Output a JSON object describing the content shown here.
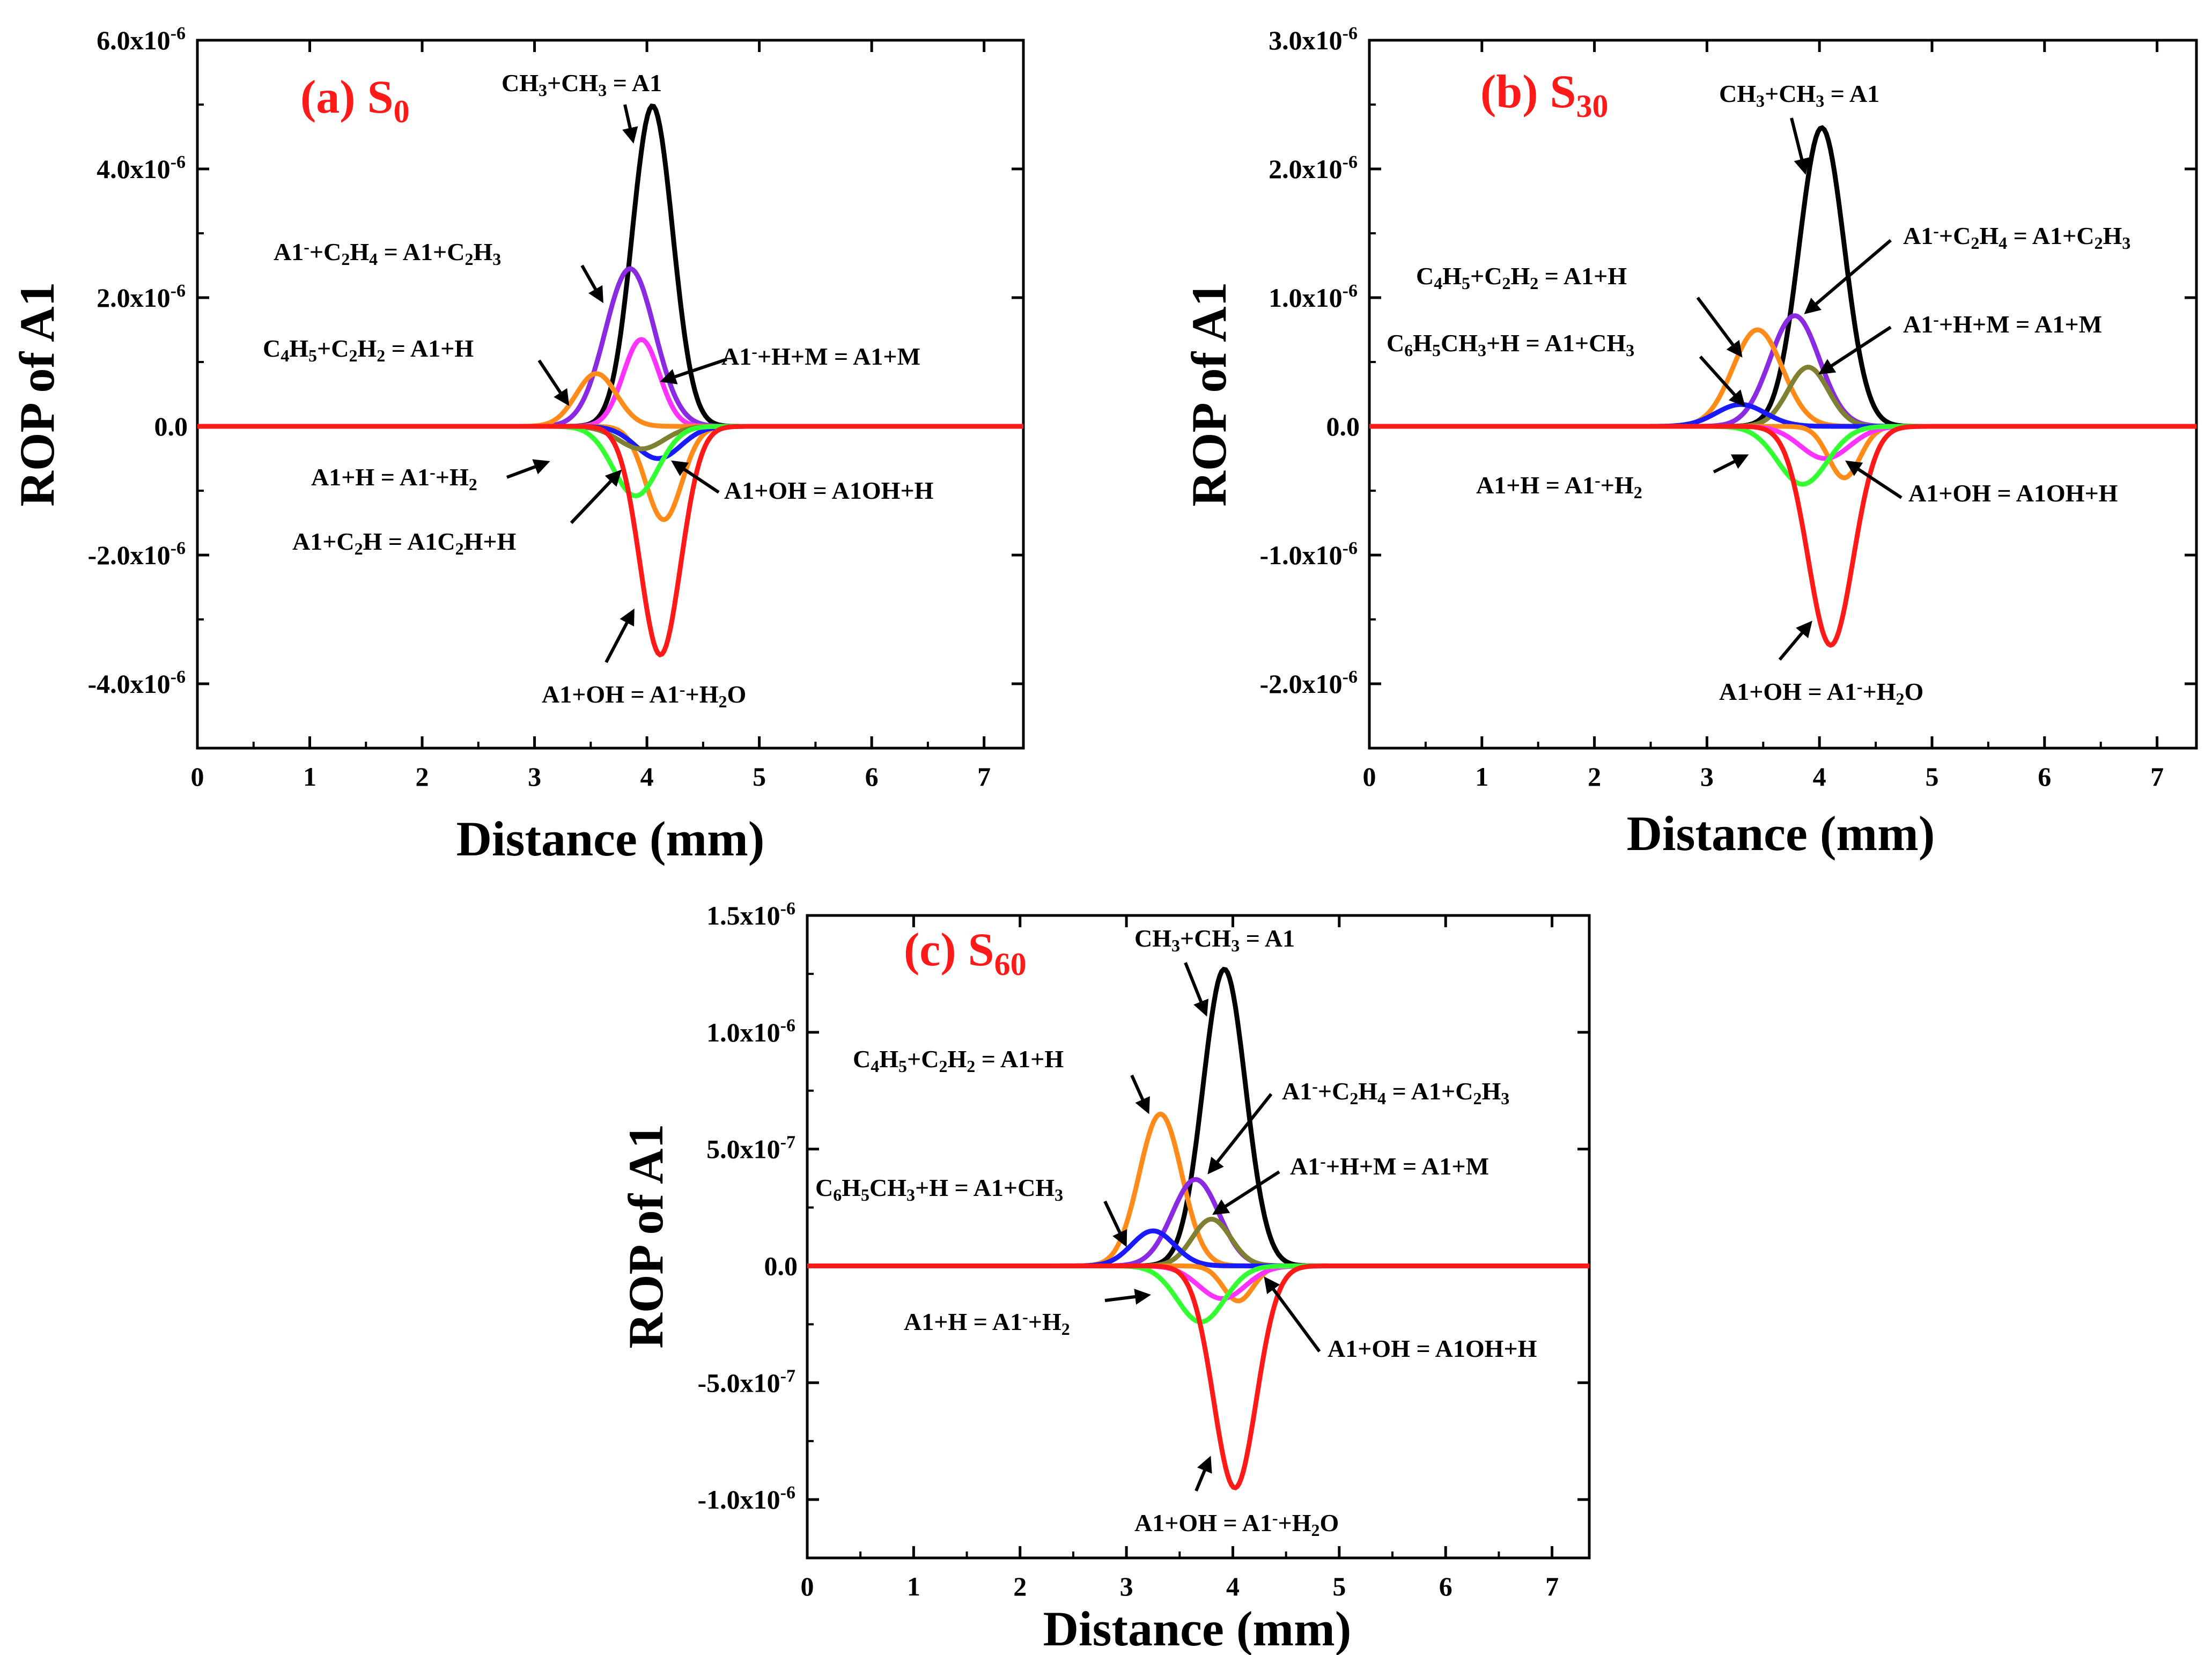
{
  "colors": {
    "black": "#000000",
    "violet": "#8a2be2",
    "magenta": "#ff33ff",
    "orange": "#ff8c1a",
    "blue": "#1a1aff",
    "olive": "#808033",
    "green": "#33ff33",
    "red": "#ff1a1a"
  },
  "chart_data": [
    {
      "type": "line",
      "panel": "a",
      "title_letter": "(a) S",
      "title_sub": "0",
      "xlabel": "Distance (mm)",
      "ylabel": "ROP of A1",
      "xlim": [
        0,
        7.35
      ],
      "ylim": [
        -5e-06,
        6e-06
      ],
      "xticks": [
        "0",
        "1",
        "2",
        "3",
        "4",
        "5",
        "6",
        "7"
      ],
      "yticks": [
        {
          "v": 6e-06,
          "base": "6.0x10",
          "exp": "-6"
        },
        {
          "v": 4e-06,
          "base": "4.0x10",
          "exp": "-6"
        },
        {
          "v": 2e-06,
          "base": "2.0x10",
          "exp": "-6"
        },
        {
          "v": 0,
          "base": "0.0",
          "exp": ""
        },
        {
          "v": -2e-06,
          "base": "-2.0x10",
          "exp": "-6"
        },
        {
          "v": -4e-06,
          "base": "-4.0x10",
          "exp": "-6"
        }
      ],
      "series": [
        {
          "name": "CH3+CH3 = A1",
          "color": "#000000",
          "peak": 4.98e-06,
          "center": 4.05,
          "width": 0.18
        },
        {
          "name": "A1-+C2H4 = A1+C2H3",
          "color": "#8a2be2",
          "peak": 2.45e-06,
          "center": 3.85,
          "width": 0.22
        },
        {
          "name": "A1-+H+M = A1+M",
          "color": "#ff33ff",
          "peak": 1.35e-06,
          "center": 3.95,
          "width": 0.16
        },
        {
          "name": "C4H5+C2H2 = A1+H",
          "color": "#ff8c1a",
          "peak": 8.2e-07,
          "center": 3.55,
          "width": 0.18
        },
        {
          "name": "A1+OH = A1OH+H",
          "color": "#ff8c1a",
          "peak": -1.45e-06,
          "center": 4.15,
          "width": 0.16
        },
        {
          "name": "A1+H = A1-+H2",
          "color": "#1a1aff",
          "peak": -5e-07,
          "center": 4.1,
          "width": 0.2
        },
        {
          "name": "A1+C2H = A1C2H+H",
          "color": "#808033",
          "peak": -3.5e-07,
          "center": 3.95,
          "width": 0.2
        },
        {
          "name": "A1+OH = A1OH+H (green)",
          "color": "#33ff33",
          "peak": -1.08e-06,
          "center": 3.9,
          "width": 0.2
        },
        {
          "name": "A1+OH = A1-+H2O",
          "color": "#ff1a1a",
          "peak": -3.55e-06,
          "center": 4.12,
          "width": 0.18
        }
      ],
      "annotations": [
        {
          "parts": [
            [
              "CH",
              "n"
            ],
            [
              "3",
              "sub"
            ],
            [
              "+CH",
              "n"
            ],
            [
              "3",
              "sub"
            ],
            [
              " = A1",
              "n"
            ]
          ]
        },
        {
          "parts": [
            [
              "A1",
              "n"
            ],
            [
              "-",
              "sup"
            ],
            [
              "+C",
              "n"
            ],
            [
              "2",
              "sub"
            ],
            [
              "H",
              "n"
            ],
            [
              "4",
              "sub"
            ],
            [
              " = A1+C",
              "n"
            ],
            [
              "2",
              "sub"
            ],
            [
              "H",
              "n"
            ],
            [
              "3",
              "sub"
            ]
          ]
        },
        {
          "parts": [
            [
              "C",
              "n"
            ],
            [
              "4",
              "sub"
            ],
            [
              "H",
              "n"
            ],
            [
              "5",
              "sub"
            ],
            [
              "+C",
              "n"
            ],
            [
              "2",
              "sub"
            ],
            [
              "H",
              "n"
            ],
            [
              "2",
              "sub"
            ],
            [
              " = A1+H",
              "n"
            ]
          ]
        },
        {
          "parts": [
            [
              "A1",
              "n"
            ],
            [
              "-",
              "sup"
            ],
            [
              "+H+M = A1+M",
              "n"
            ]
          ]
        },
        {
          "parts": [
            [
              "A1+H = A1",
              "n"
            ],
            [
              "-",
              "sup"
            ],
            [
              "+H",
              "n"
            ],
            [
              "2",
              "sub"
            ]
          ]
        },
        {
          "parts": [
            [
              "A1+OH = A1OH+H",
              "n"
            ]
          ]
        },
        {
          "parts": [
            [
              "A1+C",
              "n"
            ],
            [
              "2",
              "sub"
            ],
            [
              "H = A1C",
              "n"
            ],
            [
              "2",
              "sub"
            ],
            [
              "H+H",
              "n"
            ]
          ]
        },
        {
          "parts": [
            [
              "A1+OH = A1",
              "n"
            ],
            [
              "-",
              "sup"
            ],
            [
              "+H",
              "n"
            ],
            [
              "2",
              "sub"
            ],
            [
              "O",
              "n"
            ]
          ]
        }
      ]
    },
    {
      "type": "line",
      "panel": "b",
      "title_letter": "(b) S",
      "title_sub": "30",
      "xlabel": "Distance (mm)",
      "ylabel": "ROP of A1",
      "xlim": [
        0,
        7.35
      ],
      "ylim": [
        -2.5e-06,
        3e-06
      ],
      "xticks": [
        "0",
        "1",
        "2",
        "3",
        "4",
        "5",
        "6",
        "7"
      ],
      "yticks": [
        {
          "v": 3e-06,
          "base": "3.0x10",
          "exp": "-6"
        },
        {
          "v": 2e-06,
          "base": "2.0x10",
          "exp": "-6"
        },
        {
          "v": 1e-06,
          "base": "1.0x10",
          "exp": "-6"
        },
        {
          "v": 0,
          "base": "0.0",
          "exp": ""
        },
        {
          "v": -1e-06,
          "base": "-1.0x10",
          "exp": "-6"
        },
        {
          "v": -2e-06,
          "base": "-2.0x10",
          "exp": "-6"
        }
      ],
      "series": [
        {
          "name": "CH3+CH3 = A1",
          "color": "#000000",
          "peak": 2.32e-06,
          "center": 4.02,
          "width": 0.2
        },
        {
          "name": "A1-+C2H4 = A1+C2H3",
          "color": "#8a2be2",
          "peak": 8.6e-07,
          "center": 3.78,
          "width": 0.22
        },
        {
          "name": "C4H5+C2H2 = A1+H",
          "color": "#ff8c1a",
          "peak": 7.5e-07,
          "center": 3.45,
          "width": 0.22
        },
        {
          "name": "A1-+H+M = A1+M",
          "color": "#808033",
          "peak": 4.6e-07,
          "center": 3.9,
          "width": 0.18
        },
        {
          "name": "C6H5CH3+H = A1+CH3",
          "color": "#1a1aff",
          "peak": 1.7e-07,
          "center": 3.3,
          "width": 0.22
        },
        {
          "name": "A1+OH = A1OH+H",
          "color": "#ff8c1a",
          "peak": -4e-07,
          "center": 4.22,
          "width": 0.14
        },
        {
          "name": "A1+OH = A1OH+H (magenta)",
          "color": "#ff33ff",
          "peak": -2.5e-07,
          "center": 4.05,
          "width": 0.22
        },
        {
          "name": "A1+H = A1-+H2",
          "color": "#33ff33",
          "peak": -4.5e-07,
          "center": 3.85,
          "width": 0.22
        },
        {
          "name": "A1+OH = A1-+H2O",
          "color": "#ff1a1a",
          "peak": -1.7e-06,
          "center": 4.1,
          "width": 0.2
        }
      ],
      "annotations": [
        {
          "parts": [
            [
              "CH",
              "n"
            ],
            [
              "3",
              "sub"
            ],
            [
              "+CH",
              "n"
            ],
            [
              "3",
              "sub"
            ],
            [
              " = A1",
              "n"
            ]
          ]
        },
        {
          "parts": [
            [
              "A1",
              "n"
            ],
            [
              "-",
              "sup"
            ],
            [
              "+C",
              "n"
            ],
            [
              "2",
              "sub"
            ],
            [
              "H",
              "n"
            ],
            [
              "4",
              "sub"
            ],
            [
              " = A1+C",
              "n"
            ],
            [
              "2",
              "sub"
            ],
            [
              "H",
              "n"
            ],
            [
              "3",
              "sub"
            ]
          ]
        },
        {
          "parts": [
            [
              "C",
              "n"
            ],
            [
              "4",
              "sub"
            ],
            [
              "H",
              "n"
            ],
            [
              "5",
              "sub"
            ],
            [
              "+C",
              "n"
            ],
            [
              "2",
              "sub"
            ],
            [
              "H",
              "n"
            ],
            [
              "2",
              "sub"
            ],
            [
              " = A1+H",
              "n"
            ]
          ]
        },
        {
          "parts": [
            [
              "A1",
              "n"
            ],
            [
              "-",
              "sup"
            ],
            [
              "+H+M = A1+M",
              "n"
            ]
          ]
        },
        {
          "parts": [
            [
              "C",
              "n"
            ],
            [
              "6",
              "sub"
            ],
            [
              "H",
              "n"
            ],
            [
              "5",
              "sub"
            ],
            [
              "CH",
              "n"
            ],
            [
              "3",
              "sub"
            ],
            [
              "+H = A1+CH",
              "n"
            ],
            [
              "3",
              "sub"
            ]
          ]
        },
        {
          "parts": [
            [
              "A1+H = A1",
              "n"
            ],
            [
              "-",
              "sup"
            ],
            [
              "+H",
              "n"
            ],
            [
              "2",
              "sub"
            ]
          ]
        },
        {
          "parts": [
            [
              "A1+OH = A1OH+H",
              "n"
            ]
          ]
        },
        {
          "parts": [
            [
              "A1+OH = A1",
              "n"
            ],
            [
              "-",
              "sup"
            ],
            [
              "+H",
              "n"
            ],
            [
              "2",
              "sub"
            ],
            [
              "O",
              "n"
            ]
          ]
        }
      ]
    },
    {
      "type": "line",
      "panel": "c",
      "title_letter": "(c) S",
      "title_sub": "60",
      "xlabel": "Distance (mm)",
      "ylabel": "ROP of A1",
      "xlim": [
        0,
        7.35
      ],
      "ylim": [
        -1.25e-06,
        1.5e-06
      ],
      "xticks": [
        "0",
        "1",
        "2",
        "3",
        "4",
        "5",
        "6",
        "7"
      ],
      "yticks": [
        {
          "v": 1.5e-06,
          "base": "1.5x10",
          "exp": "-6"
        },
        {
          "v": 1e-06,
          "base": "1.0x10",
          "exp": "-6"
        },
        {
          "v": 5e-07,
          "base": "5.0x10",
          "exp": "-7"
        },
        {
          "v": 0,
          "base": "0.0",
          "exp": ""
        },
        {
          "v": -5e-07,
          "base": "-5.0x10",
          "exp": "-7"
        },
        {
          "v": -1e-06,
          "base": "-1.0x10",
          "exp": "-6"
        }
      ],
      "series": [
        {
          "name": "CH3+CH3 = A1",
          "color": "#000000",
          "peak": 1.27e-06,
          "center": 3.92,
          "width": 0.2
        },
        {
          "name": "C4H5+C2H2 = A1+H",
          "color": "#ff8c1a",
          "peak": 6.5e-07,
          "center": 3.32,
          "width": 0.2
        },
        {
          "name": "A1-+C2H4 = A1+C2H3",
          "color": "#8a2be2",
          "peak": 3.7e-07,
          "center": 3.65,
          "width": 0.22
        },
        {
          "name": "A1-+H+M = A1+M",
          "color": "#808033",
          "peak": 2e-07,
          "center": 3.8,
          "width": 0.18
        },
        {
          "name": "C6H5CH3+H = A1+CH3",
          "color": "#1a1aff",
          "peak": 1.5e-07,
          "center": 3.25,
          "width": 0.2
        },
        {
          "name": "A1+OH = A1OH+H",
          "color": "#ff8c1a",
          "peak": -1.5e-07,
          "center": 4.05,
          "width": 0.14
        },
        {
          "name": "A1+OH = A1OH+H (magenta)",
          "color": "#ff33ff",
          "peak": -1.4e-07,
          "center": 3.9,
          "width": 0.22
        },
        {
          "name": "A1+H = A1-+H2",
          "color": "#33ff33",
          "peak": -2.4e-07,
          "center": 3.7,
          "width": 0.22
        },
        {
          "name": "A1+OH = A1-+H2O",
          "color": "#ff1a1a",
          "peak": -9.5e-07,
          "center": 4.02,
          "width": 0.2
        }
      ],
      "annotations": [
        {
          "parts": [
            [
              "CH",
              "n"
            ],
            [
              "3",
              "sub"
            ],
            [
              "+CH",
              "n"
            ],
            [
              "3",
              "sub"
            ],
            [
              " = A1",
              "n"
            ]
          ]
        },
        {
          "parts": [
            [
              "C",
              "n"
            ],
            [
              "4",
              "sub"
            ],
            [
              "H",
              "n"
            ],
            [
              "5",
              "sub"
            ],
            [
              "+C",
              "n"
            ],
            [
              "2",
              "sub"
            ],
            [
              "H",
              "n"
            ],
            [
              "2",
              "sub"
            ],
            [
              " = A1+H",
              "n"
            ]
          ]
        },
        {
          "parts": [
            [
              "A1",
              "n"
            ],
            [
              "-",
              "sup"
            ],
            [
              "+C",
              "n"
            ],
            [
              "2",
              "sub"
            ],
            [
              "H",
              "n"
            ],
            [
              "4",
              "sub"
            ],
            [
              " = A1+C",
              "n"
            ],
            [
              "2",
              "sub"
            ],
            [
              "H",
              "n"
            ],
            [
              "3",
              "sub"
            ]
          ]
        },
        {
          "parts": [
            [
              "A1",
              "n"
            ],
            [
              "-",
              "sup"
            ],
            [
              "+H+M = A1+M",
              "n"
            ]
          ]
        },
        {
          "parts": [
            [
              "C",
              "n"
            ],
            [
              "6",
              "sub"
            ],
            [
              "H",
              "n"
            ],
            [
              "5",
              "sub"
            ],
            [
              "CH",
              "n"
            ],
            [
              "3",
              "sub"
            ],
            [
              "+H = A1+CH",
              "n"
            ],
            [
              "3",
              "sub"
            ]
          ]
        },
        {
          "parts": [
            [
              "A1+H = A1",
              "n"
            ],
            [
              "-",
              "sup"
            ],
            [
              "+H",
              "n"
            ],
            [
              "2",
              "sub"
            ]
          ]
        },
        {
          "parts": [
            [
              "A1+OH = A1OH+H",
              "n"
            ]
          ]
        },
        {
          "parts": [
            [
              "A1+OH = A1",
              "n"
            ],
            [
              "-",
              "sup"
            ],
            [
              "+H",
              "n"
            ],
            [
              "2",
              "sub"
            ],
            [
              "O",
              "n"
            ]
          ]
        }
      ]
    }
  ]
}
